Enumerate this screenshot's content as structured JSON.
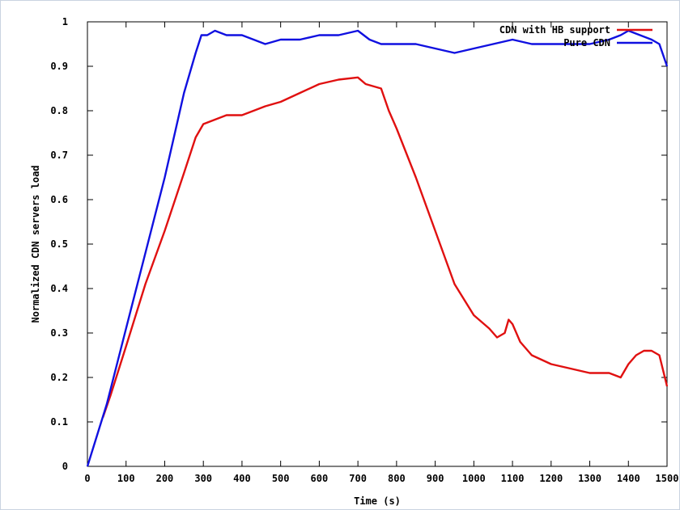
{
  "chart_data": {
    "type": "line",
    "title": "",
    "xlabel": "Time (s)",
    "ylabel": "Normalized CDN servers load",
    "xlim": [
      0,
      1500
    ],
    "ylim": [
      0,
      1
    ],
    "xticks": [
      "0",
      "100",
      "200",
      "300",
      "400",
      "500",
      "600",
      "700",
      "800",
      "900",
      "1000",
      "1100",
      "1200",
      "1300",
      "1400",
      "1500"
    ],
    "yticks": [
      "0",
      "0.1",
      "0.2",
      "0.3",
      "0.4",
      "0.5",
      "0.6",
      "0.7",
      "0.8",
      "0.9",
      "1"
    ],
    "grid": false,
    "legend_position": "top-right",
    "series": [
      {
        "name": "CDN with HB support",
        "color": "#e01010",
        "x": [
          40,
          60,
          100,
          150,
          200,
          250,
          280,
          300,
          330,
          360,
          400,
          430,
          460,
          500,
          550,
          600,
          650,
          700,
          720,
          760,
          780,
          800,
          850,
          900,
          950,
          1000,
          1040,
          1060,
          1080,
          1090,
          1100,
          1120,
          1150,
          1200,
          1250,
          1300,
          1350,
          1380,
          1400,
          1420,
          1440,
          1460,
          1480,
          1500
        ],
        "y": [
          0.11,
          0.16,
          0.27,
          0.41,
          0.53,
          0.66,
          0.74,
          0.77,
          0.78,
          0.79,
          0.79,
          0.8,
          0.81,
          0.82,
          0.84,
          0.86,
          0.87,
          0.875,
          0.86,
          0.85,
          0.8,
          0.76,
          0.65,
          0.53,
          0.41,
          0.34,
          0.31,
          0.29,
          0.3,
          0.33,
          0.32,
          0.28,
          0.25,
          0.23,
          0.22,
          0.21,
          0.21,
          0.2,
          0.23,
          0.25,
          0.26,
          0.26,
          0.25,
          0.18
        ]
      },
      {
        "name": "Pure CDN",
        "color": "#1010e0",
        "x": [
          0,
          50,
          100,
          150,
          200,
          250,
          280,
          295,
          310,
          330,
          360,
          400,
          430,
          460,
          500,
          550,
          600,
          650,
          700,
          730,
          760,
          800,
          850,
          900,
          950,
          1000,
          1050,
          1100,
          1150,
          1200,
          1250,
          1300,
          1350,
          1380,
          1400,
          1430,
          1460,
          1480,
          1500
        ],
        "y": [
          0,
          0.14,
          0.31,
          0.48,
          0.65,
          0.84,
          0.93,
          0.97,
          0.97,
          0.98,
          0.97,
          0.97,
          0.96,
          0.95,
          0.96,
          0.96,
          0.97,
          0.97,
          0.98,
          0.96,
          0.95,
          0.95,
          0.95,
          0.94,
          0.93,
          0.94,
          0.95,
          0.96,
          0.95,
          0.95,
          0.95,
          0.95,
          0.96,
          0.97,
          0.98,
          0.97,
          0.96,
          0.95,
          0.9
        ]
      }
    ]
  }
}
